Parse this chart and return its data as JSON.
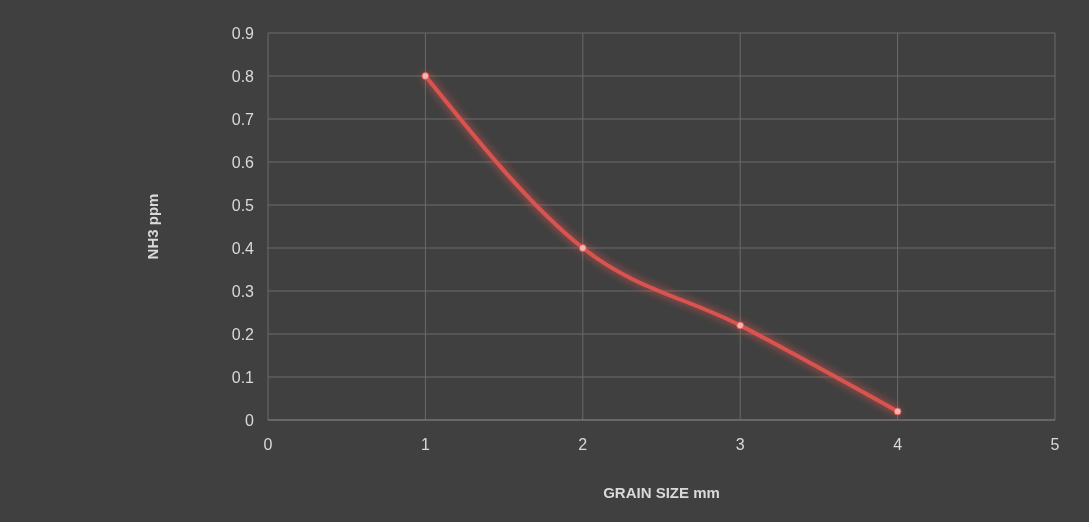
{
  "chart_data": {
    "type": "line",
    "xlabel": "GRAIN SIZE mm",
    "ylabel": "NH3 ppm",
    "x": [
      1,
      2,
      3,
      4
    ],
    "series": [
      {
        "color": "#d9534f",
        "values": [
          0.8,
          0.4,
          0.22,
          0.02
        ]
      }
    ],
    "xlim": [
      0,
      5
    ],
    "xticks": [
      0,
      1,
      2,
      3,
      4,
      5
    ],
    "ylim": [
      0,
      0.9
    ],
    "yticks": [
      0,
      0.1,
      0.2,
      0.3,
      0.4,
      0.5,
      0.6,
      0.7,
      0.8,
      0.9
    ],
    "grid": true,
    "marker": "circle",
    "line_style": "solid"
  }
}
